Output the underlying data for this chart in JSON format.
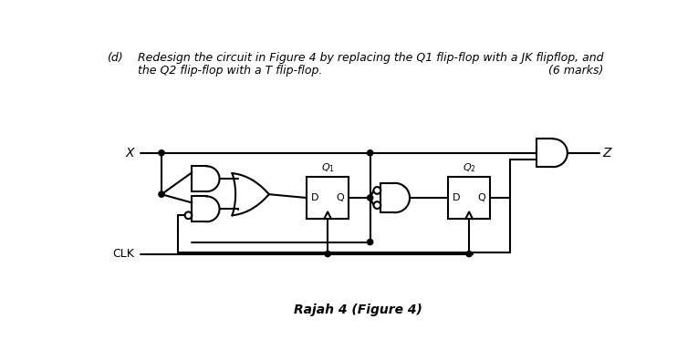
{
  "bg_color": "#ffffff",
  "line_color": "#000000",
  "lw": 1.5,
  "fig_width": 7.65,
  "fig_height": 3.84,
  "dpi": 100,
  "text_line1": "Redesign the circuit in Figure 4 by replacing the Q1 flip-flop with a JK flipflop, and",
  "text_line2": "the Q2 flip-flop with a T flip-flop.",
  "text_marks": "(6 marks)",
  "text_d": "(d)",
  "caption": "Rajah 4 (Figure 4)"
}
